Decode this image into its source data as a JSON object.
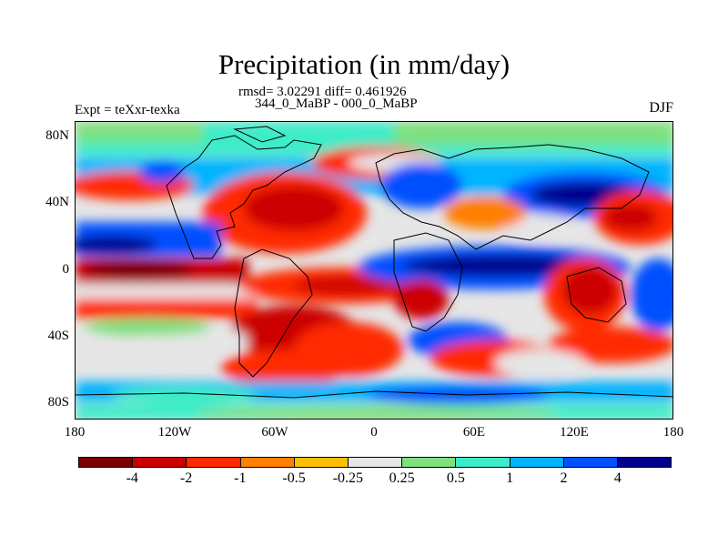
{
  "title": "Precipitation (in mm/day)",
  "stats": "rmsd= 3.02291 diff= 0.461926",
  "periods": "344_0_MaBP - 000_0_MaBP",
  "experiment": "Expt = teXxr-texka",
  "season": "DJF",
  "map": {
    "lat_labels": [
      "80N",
      "40N",
      "0",
      "40S",
      "80S"
    ],
    "lon_labels": [
      "180",
      "120W",
      "60W",
      "0",
      "60E",
      "120E",
      "180"
    ]
  },
  "colorbar": {
    "labels": [
      "-4",
      "-2",
      "-1",
      "-0.5",
      "-0.25",
      "0.25",
      "0.5",
      "1",
      "2",
      "4"
    ],
    "colors": [
      "#7a0000",
      "#cc0000",
      "#ff2a00",
      "#ff7f00",
      "#ffc000",
      "#e6e6e6",
      "#7ee07e",
      "#3cecc8",
      "#00b4ff",
      "#0050ff",
      "#00008c"
    ]
  }
}
